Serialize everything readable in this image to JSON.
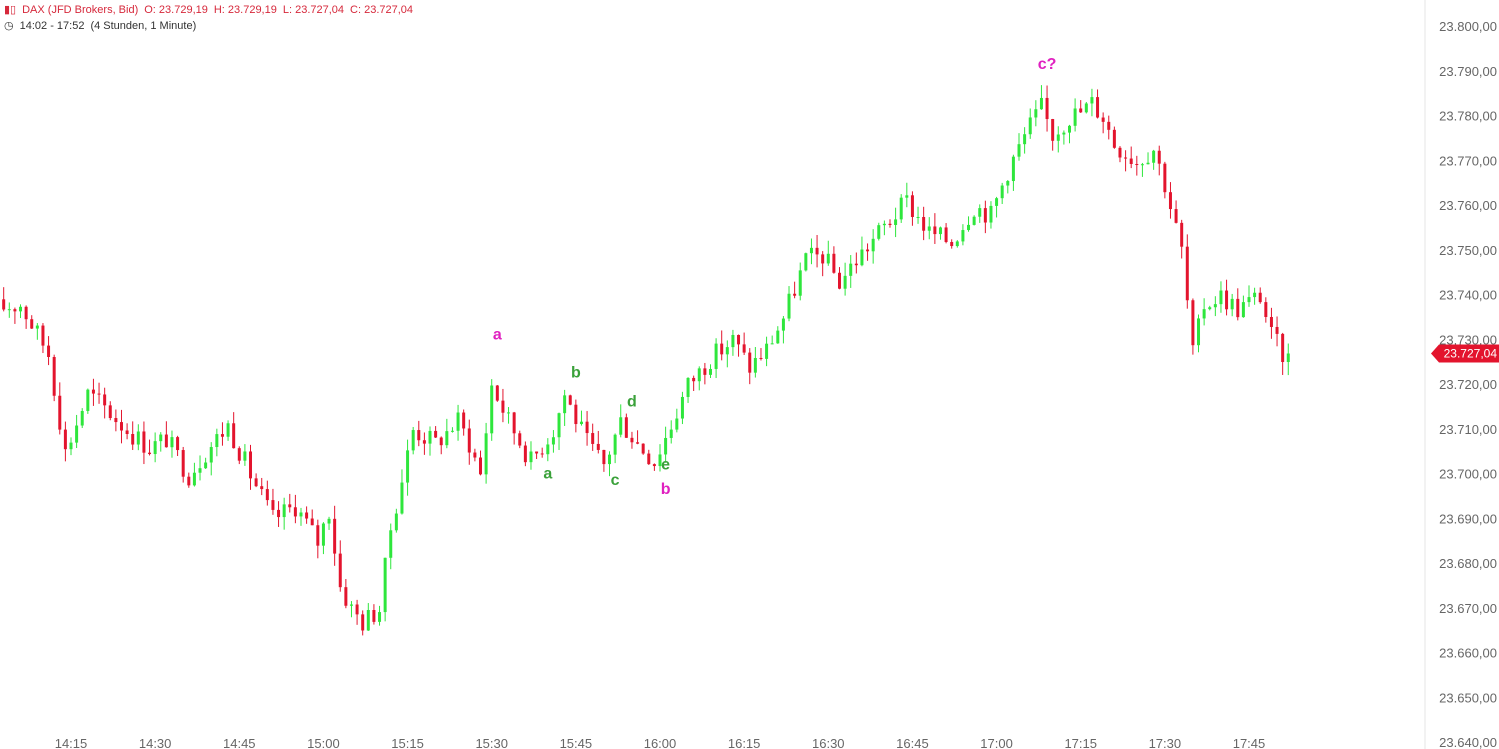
{
  "header": {
    "instrument": "DAX (JFD Brokers, Bid)",
    "open": "O: 23.729,19",
    "high": "H: 23.729,19",
    "low": "L: 23.727,04",
    "close": "C: 23.727,04",
    "time_range": "14:02 - 17:52",
    "span": "(4 Stunden, 1 Minute)"
  },
  "colors": {
    "up": "#2ee63c",
    "down": "#e3142d",
    "wave_primary": "#e020c0",
    "wave_secondary": "#3aa13a",
    "axis_text": "#666666"
  },
  "chart_data": {
    "type": "candlestick",
    "y_axis": {
      "range": [
        23640,
        23805
      ],
      "ticks": [
        "23.640,00",
        "23.650,00",
        "23.660,00",
        "23.670,00",
        "23.680,00",
        "23.690,00",
        "23.700,00",
        "23.710,00",
        "23.720,00",
        "23.730,00",
        "23.740,00",
        "23.750,00",
        "23.760,00",
        "23.770,00",
        "23.780,00",
        "23.790,00",
        "23.800,00"
      ],
      "tick_values": [
        23640,
        23650,
        23660,
        23670,
        23680,
        23690,
        23700,
        23710,
        23720,
        23730,
        23740,
        23750,
        23760,
        23770,
        23780,
        23790,
        23800
      ]
    },
    "x_axis": {
      "start": "14:02",
      "end": "17:52",
      "ticks": [
        "14:15",
        "14:30",
        "14:45",
        "15:00",
        "15:15",
        "15:30",
        "15:45",
        "16:00",
        "16:15",
        "16:30",
        "16:45",
        "17:00",
        "17:15",
        "17:30",
        "17:45"
      ]
    },
    "last_price": {
      "label": "23.727,04",
      "value": 23727.04
    },
    "path_anchors": [
      [
        "14:02",
        23737
      ],
      [
        "14:07",
        23738
      ],
      [
        "14:12",
        23727
      ],
      [
        "14:15",
        23705
      ],
      [
        "14:19",
        23718
      ],
      [
        "14:22",
        23715
      ],
      [
        "14:26",
        23710
      ],
      [
        "14:30",
        23706
      ],
      [
        "14:33",
        23708
      ],
      [
        "14:37",
        23700
      ],
      [
        "14:40",
        23705
      ],
      [
        "14:44",
        23711
      ],
      [
        "14:48",
        23700
      ],
      [
        "14:52",
        23690
      ],
      [
        "14:56",
        23693
      ],
      [
        "15:00",
        23685
      ],
      [
        "15:02",
        23692
      ],
      [
        "15:04",
        23675
      ],
      [
        "15:06",
        23670
      ],
      [
        "15:08",
        23667
      ],
      [
        "15:11",
        23670
      ],
      [
        "15:13",
        23688
      ],
      [
        "15:17",
        23710
      ],
      [
        "15:21",
        23707
      ],
      [
        "15:25",
        23712
      ],
      [
        "15:27",
        23707
      ],
      [
        "15:29",
        23700
      ],
      [
        "15:31",
        23720
      ],
      [
        "15:34",
        23712
      ],
      [
        "15:38",
        23703
      ],
      [
        "15:42",
        23710
      ],
      [
        "15:44",
        23718
      ],
      [
        "15:48",
        23707
      ],
      [
        "15:51",
        23702
      ],
      [
        "15:54",
        23712
      ],
      [
        "15:57",
        23707
      ],
      [
        "16:00",
        23703
      ],
      [
        "16:03",
        23711
      ],
      [
        "16:06",
        23720
      ],
      [
        "16:10",
        23726
      ],
      [
        "16:14",
        23730
      ],
      [
        "16:17",
        23724
      ],
      [
        "16:20",
        23728
      ],
      [
        "16:23",
        23735
      ],
      [
        "16:27",
        23748
      ],
      [
        "16:30",
        23749
      ],
      [
        "16:33",
        23743
      ],
      [
        "16:36",
        23748
      ],
      [
        "16:40",
        23754
      ],
      [
        "16:45",
        23761
      ],
      [
        "16:49",
        23754
      ],
      [
        "16:53",
        23752
      ],
      [
        "16:57",
        23760
      ],
      [
        "17:00",
        23758
      ],
      [
        "17:03",
        23768
      ],
      [
        "17:07",
        23778
      ],
      [
        "17:09",
        23782
      ],
      [
        "17:11",
        23776
      ],
      [
        "17:14",
        23780
      ],
      [
        "17:16",
        23781
      ],
      [
        "17:18",
        23783
      ],
      [
        "17:20",
        23780
      ],
      [
        "17:22",
        23774
      ],
      [
        "17:26",
        23770
      ],
      [
        "17:29",
        23773
      ],
      [
        "17:31",
        23765
      ],
      [
        "17:34",
        23750
      ],
      [
        "17:36",
        23727
      ],
      [
        "17:38",
        23738
      ],
      [
        "17:41",
        23740
      ],
      [
        "17:44",
        23737
      ],
      [
        "17:48",
        23740
      ],
      [
        "17:50",
        23731
      ],
      [
        "17:52",
        23727
      ]
    ],
    "wave_labels": [
      {
        "text": "a",
        "time": "15:31",
        "price": 23731.5,
        "color": "primary"
      },
      {
        "text": "b",
        "time": "16:01",
        "price": 23697,
        "color": "primary"
      },
      {
        "text": "c?",
        "time": "17:09",
        "price": 23792,
        "color": "primary"
      },
      {
        "text": "a",
        "time": "15:40",
        "price": 23700.5,
        "color": "secondary"
      },
      {
        "text": "b",
        "time": "15:45",
        "price": 23723,
        "color": "secondary"
      },
      {
        "text": "c",
        "time": "15:52",
        "price": 23699,
        "color": "secondary"
      },
      {
        "text": "d",
        "time": "15:55",
        "price": 23716.5,
        "color": "secondary"
      },
      {
        "text": "e",
        "time": "16:01",
        "price": 23702.5,
        "color": "secondary"
      }
    ]
  }
}
